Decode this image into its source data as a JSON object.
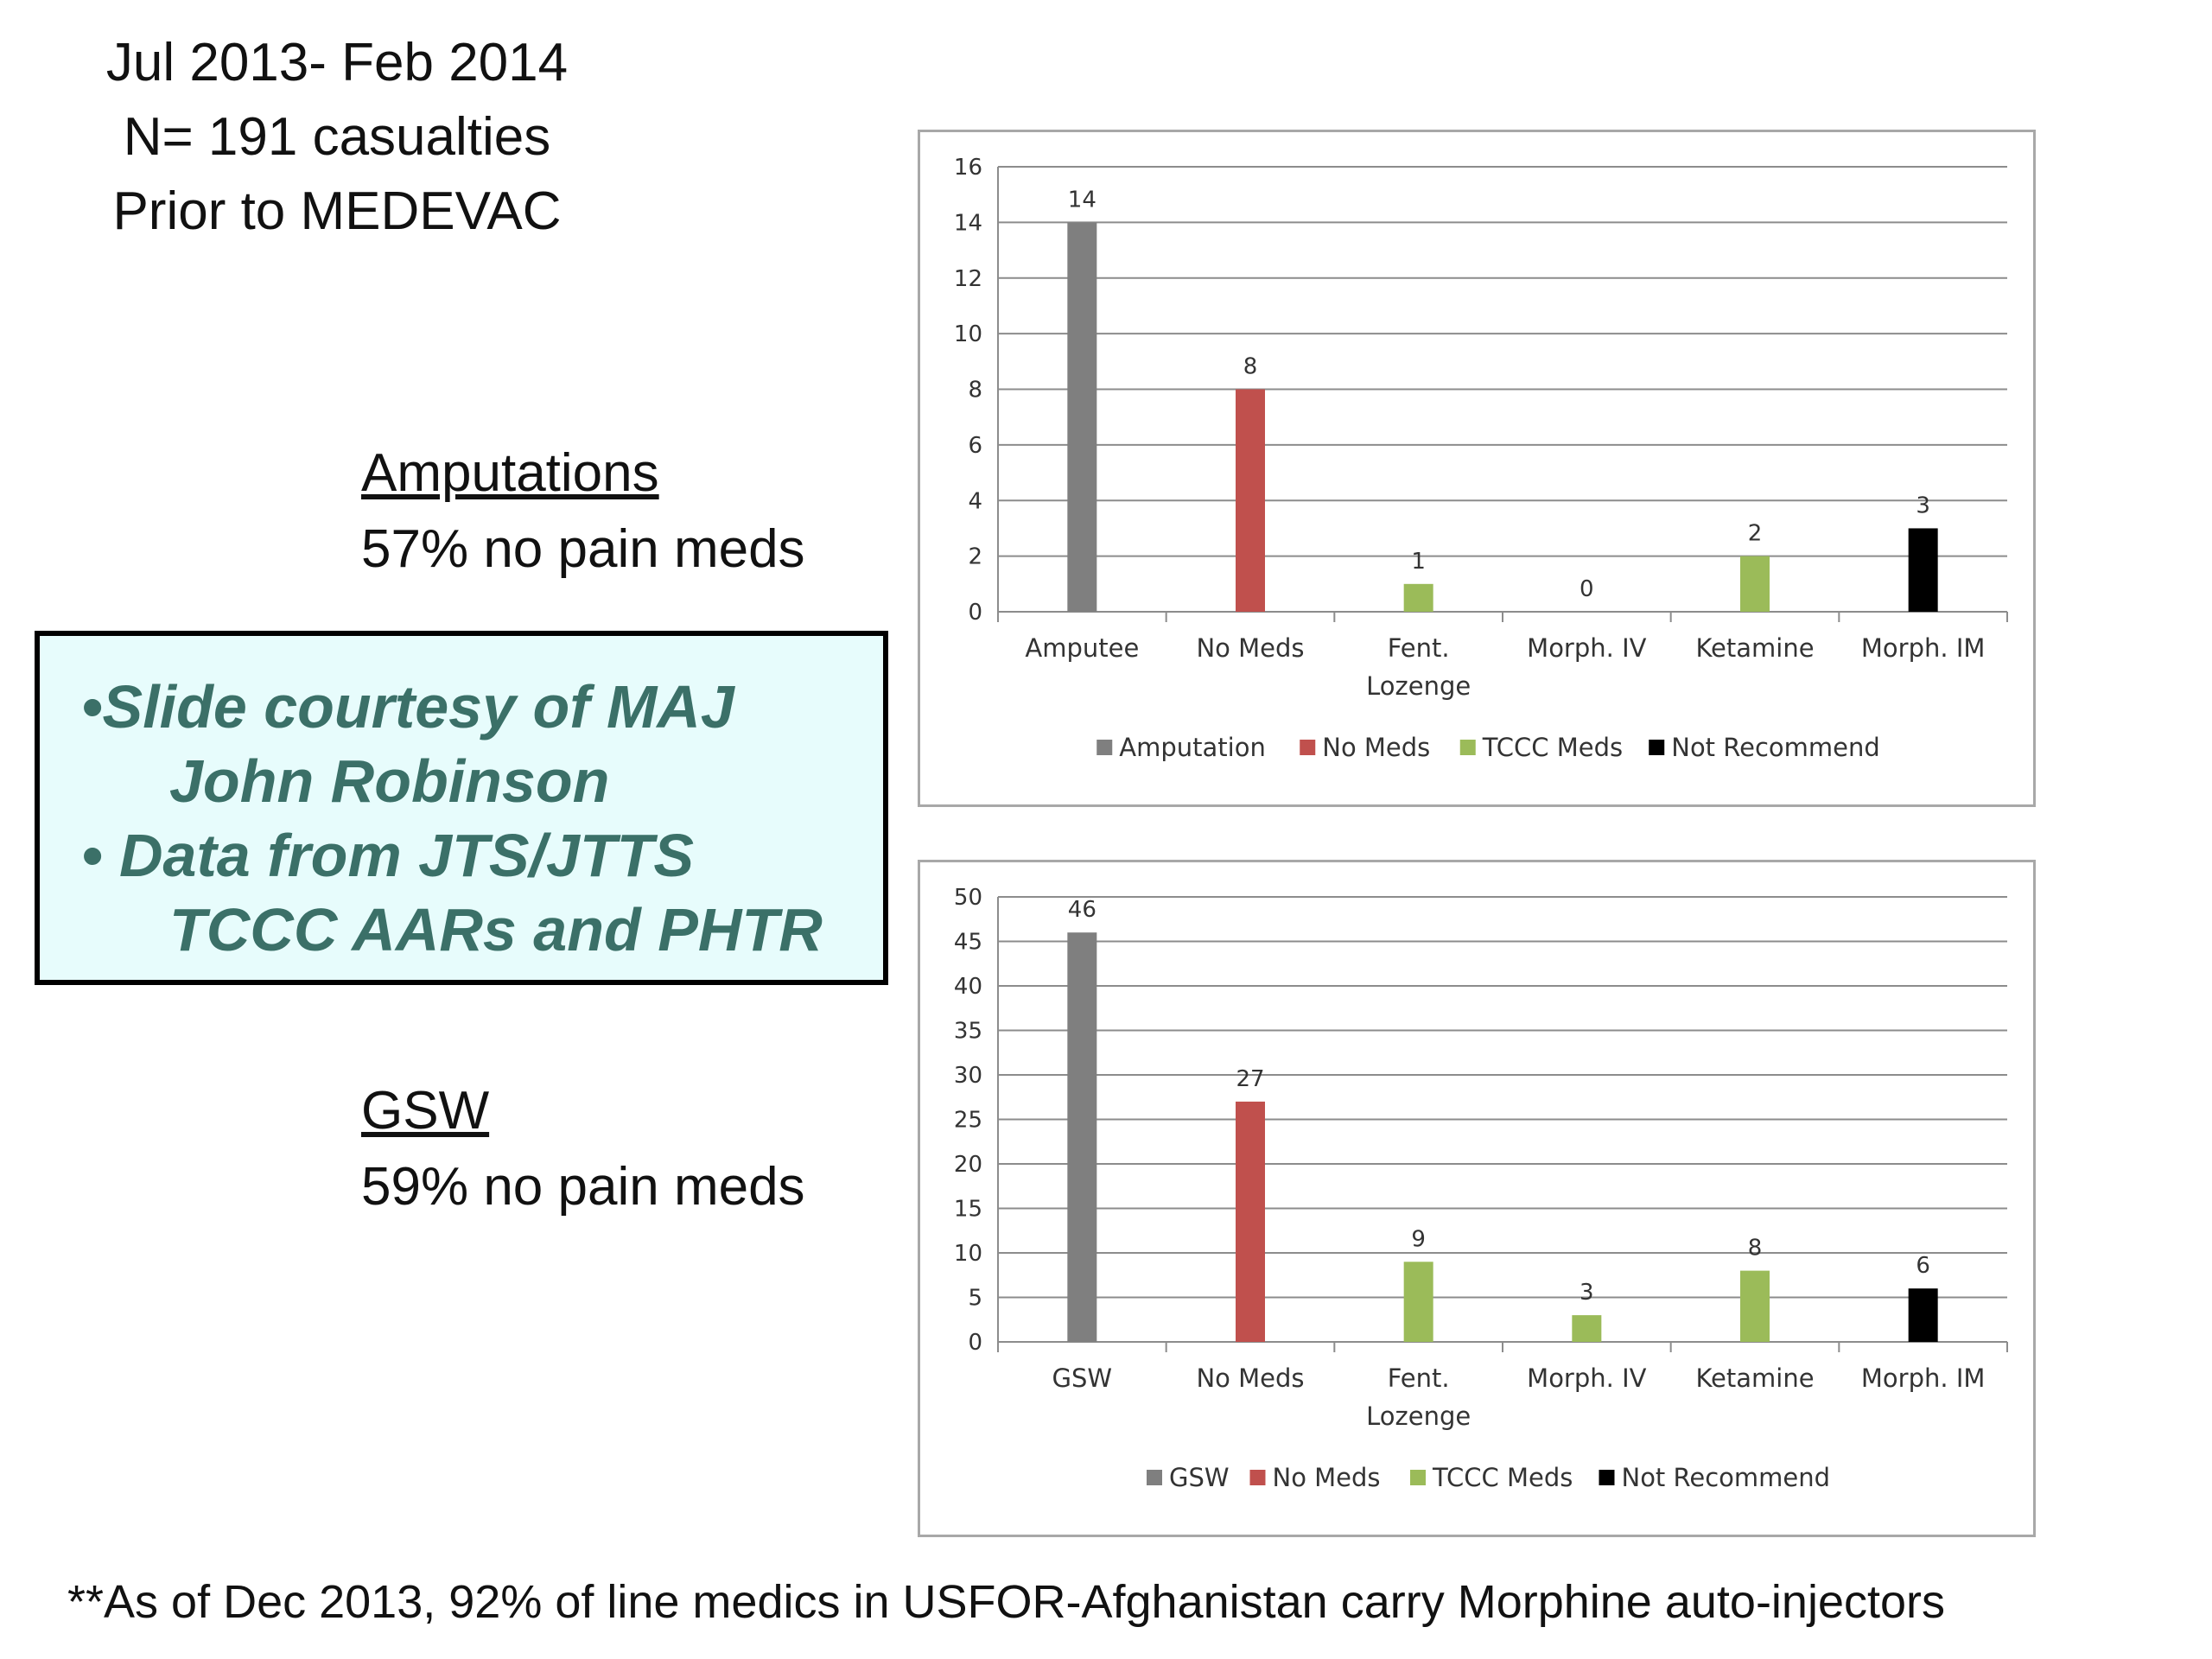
{
  "header": {
    "line1": "Jul 2013- Feb 2014",
    "line2": "N= 191 casualties",
    "line3": "Prior to MEDEVAC"
  },
  "sections": {
    "amputations": {
      "title": "Amputations",
      "subtitle": "57% no pain meds"
    },
    "gsw": {
      "title": "GSW",
      "subtitle": "59% no pain meds"
    }
  },
  "note": {
    "line1": "•Slide courtesy of MAJ",
    "line2": "John Robinson",
    "line3": "• Data from JTS/JTTS",
    "line4": "TCCC AARs and PHTR"
  },
  "footer": "**As of Dec 2013, 92% of line medics in USFOR-Afghanistan carry Morphine auto-injectors",
  "colors": {
    "gray": "#7f7f7f",
    "red": "#c0504d",
    "green": "#9bbb59",
    "black": "#000000"
  },
  "chart_data": [
    {
      "type": "bar",
      "categories": [
        "Amputee",
        "No Meds",
        "Fent.\nLozenge",
        "Morph. IV",
        "Ketamine",
        "Morph. IM"
      ],
      "values": [
        14,
        8,
        1,
        0,
        2,
        3
      ],
      "bar_colors": [
        "gray",
        "red",
        "green",
        "green",
        "green",
        "black"
      ],
      "ylim": [
        0,
        16
      ],
      "yticks": [
        0,
        2,
        4,
        6,
        8,
        10,
        12,
        14,
        16
      ],
      "data_labels": true,
      "grid": true,
      "legend_position": "bottom",
      "legend": [
        {
          "name": "Amputation",
          "color": "gray"
        },
        {
          "name": "No Meds",
          "color": "red"
        },
        {
          "name": "TCCC Meds",
          "color": "green"
        },
        {
          "name": "Not Recommend",
          "color": "black"
        }
      ]
    },
    {
      "type": "bar",
      "categories": [
        "GSW",
        "No Meds",
        "Fent.\nLozenge",
        "Morph. IV",
        "Ketamine",
        "Morph. IM"
      ],
      "values": [
        46,
        27,
        9,
        3,
        8,
        6
      ],
      "bar_colors": [
        "gray",
        "red",
        "green",
        "green",
        "green",
        "black"
      ],
      "ylim": [
        0,
        50
      ],
      "yticks": [
        0,
        5,
        10,
        15,
        20,
        25,
        30,
        35,
        40,
        45,
        50
      ],
      "data_labels": true,
      "grid": true,
      "legend_position": "bottom",
      "legend": [
        {
          "name": "GSW",
          "color": "gray"
        },
        {
          "name": "No Meds",
          "color": "red"
        },
        {
          "name": "TCCC Meds",
          "color": "green"
        },
        {
          "name": "Not Recommend",
          "color": "black"
        }
      ]
    }
  ]
}
